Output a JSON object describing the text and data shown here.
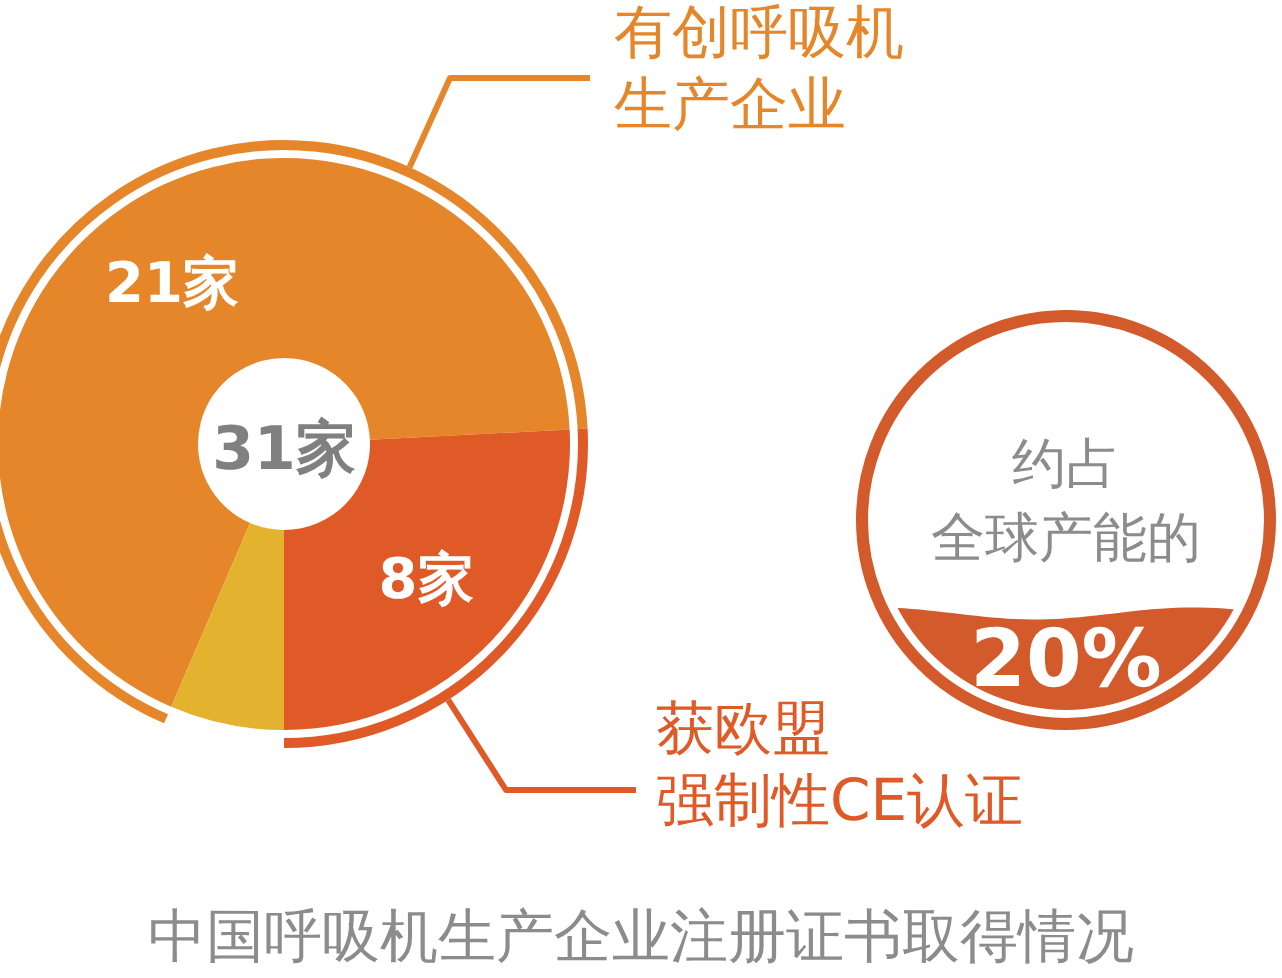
{
  "chart_data": [
    {
      "type": "donut",
      "title": "中国呼吸机生产企业注册证书取得情况",
      "categories": [
        "有创呼吸机生产企业",
        "获欧盟强制性CE认证",
        null
      ],
      "values": [
        21,
        8,
        2
      ],
      "colors": [
        "#e5862a",
        "#e05a27",
        "#e3b22f"
      ],
      "value_labels": [
        "21家",
        "8家",
        null
      ],
      "annotations": [
        "31家"
      ]
    },
    {
      "type": "other",
      "title": "约占全球产能的",
      "values": [
        20
      ],
      "value_labels": [
        "20%"
      ],
      "color": "#d35a2b"
    }
  ]
}
